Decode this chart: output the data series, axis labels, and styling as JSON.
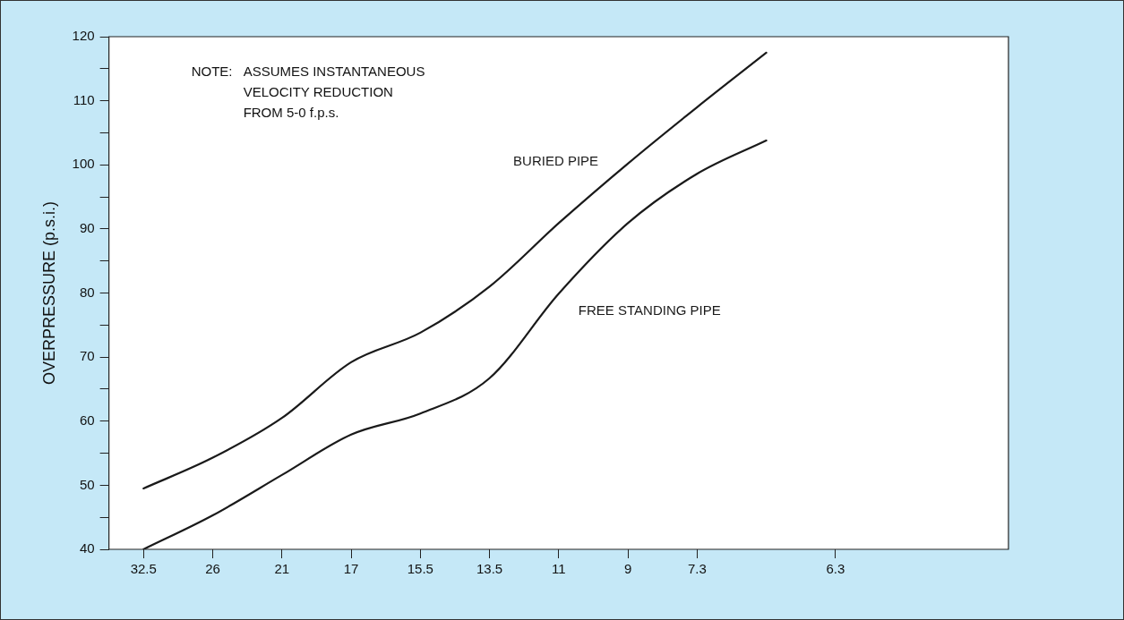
{
  "chart_data": {
    "type": "line",
    "ylabel": "OVERPRESSURE (p.s.i.)",
    "annotations": [
      "NOTE:",
      "ASSUMES INSTANTANEOUS\nVELOCITY REDUCTION\nFROM 5-0 f.p.s."
    ],
    "categories": [
      "32.5",
      "26",
      "21",
      "17",
      "15.5",
      "13.5",
      "11",
      "9",
      "7.3",
      null,
      "6.3",
      null,
      null
    ],
    "series": [
      {
        "name": "BURIED PIPE",
        "color": "#1a1a1a",
        "values": [
          49.5,
          54.3,
          60.5,
          69.2,
          73.8,
          81,
          90.9,
          100.2,
          109,
          117.5,
          null,
          null,
          null
        ]
      },
      {
        "name": "FREE STANDING PIPE",
        "color": "#1a1a1a",
        "values": [
          40,
          45.3,
          51.6,
          57.9,
          61.2,
          66.7,
          79.9,
          90.9,
          98.6,
          103.8,
          null,
          null,
          null
        ]
      }
    ],
    "ylim": [
      40,
      120
    ],
    "yticks": [
      40,
      {
        "value": 45,
        "label": null
      },
      50,
      {
        "value": 55,
        "label": null
      },
      60,
      {
        "value": 65,
        "label": null
      },
      70,
      {
        "value": 75,
        "label": null
      },
      80,
      {
        "value": 85,
        "label": null
      },
      90,
      {
        "value": 95,
        "label": null
      },
      100,
      {
        "value": 105,
        "label": null
      },
      110,
      {
        "value": 115,
        "label": null
      },
      120
    ],
    "grid": false,
    "legend": false,
    "marker": "none",
    "line_style": "solid"
  }
}
